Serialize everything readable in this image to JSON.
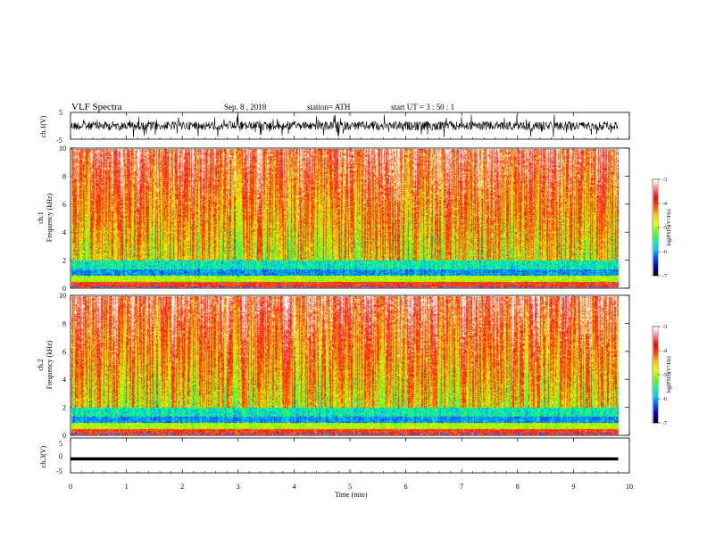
{
  "header": {
    "title": "VLF  Spectra",
    "date": "Sep. 8  , 2018",
    "station": "station= ATH",
    "start": "start  UT  =    3  : 50 : 1"
  },
  "chart_data": [
    {
      "type": "line",
      "panel": "ch1-waveform",
      "ylabel": "ch.1(V)",
      "ylim": [
        -5,
        5
      ],
      "yticks": [
        "5",
        "-5"
      ],
      "xlim": [
        0,
        10
      ],
      "series": [
        {
          "values_note": "",
          "x_end": 9.8
        }
      ],
      "color": "#000000"
    },
    {
      "type": "heatmap",
      "panel": "ch1-spectrogram",
      "ylabel_channel": "ch.1",
      "ylabel": "Frequency  (kHz)",
      "ylim": [
        0,
        10
      ],
      "yticks": [
        "0",
        "2",
        "4",
        "6",
        "8",
        "10"
      ],
      "xlim": [
        0,
        10
      ],
      "x_end": 9.8,
      "colorbar": {
        "label": "log(PSD)(V²/Hz)",
        "ticks": [
          "-3",
          "-4",
          "-5",
          "-6",
          "-7"
        ],
        "range": [
          -7,
          -3
        ]
      }
    },
    {
      "type": "heatmap",
      "panel": "ch2-spectrogram",
      "ylabel_channel": "ch.2",
      "ylabel": "Frequency  (kHz)",
      "ylim": [
        0,
        10
      ],
      "yticks": [
        "0",
        "2",
        "4",
        "6",
        "8",
        "10"
      ],
      "xlim": [
        0,
        10
      ],
      "x_end": 9.8,
      "colorbar": {
        "label": "log(PSD)(V²/Hz)",
        "ticks": [
          "-3",
          "-4",
          "-5",
          "-6",
          "-7"
        ],
        "range": [
          -7,
          -3
        ]
      }
    },
    {
      "type": "line",
      "panel": "ch3-waveform",
      "ylabel": "ch.3(V)",
      "ylim": [
        -5,
        5
      ],
      "yticks": [
        "5",
        "0",
        "-5"
      ],
      "xlim": [
        0,
        10
      ],
      "x_end": 9.8,
      "level": -1,
      "color": "#000000"
    }
  ],
  "xaxis": {
    "label": "Time  (min)",
    "ticks": [
      "0",
      "1",
      "2",
      "3",
      "4",
      "5",
      "6",
      "7",
      "8",
      "9",
      "10"
    ]
  },
  "colormap": [
    "#000000",
    "#0000c8",
    "#0050ff",
    "#00c8ff",
    "#00ff96",
    "#64ff00",
    "#e6ff00",
    "#ffc800",
    "#ff5000",
    "#ff0000",
    "#ff7878",
    "#ffffff"
  ]
}
